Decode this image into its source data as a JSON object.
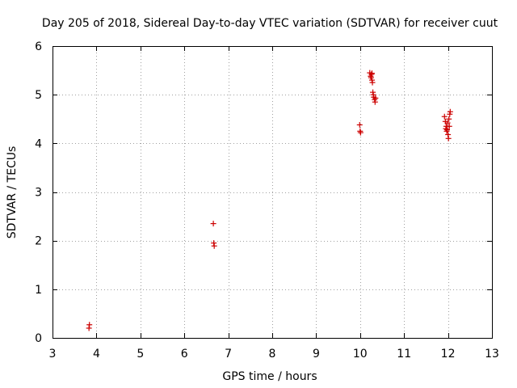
{
  "chart_data": {
    "type": "scatter",
    "title": "Day 205 of 2018, Sidereal Day-to-day VTEC variation (SDTVAR) for receiver cuut",
    "xlabel": "GPS time / hours",
    "ylabel": "SDTVAR / TECUs",
    "xlim": [
      3,
      13
    ],
    "ylim": [
      0,
      6
    ],
    "xticks": [
      3,
      4,
      5,
      6,
      7,
      8,
      9,
      10,
      11,
      12,
      13
    ],
    "yticks": [
      0,
      1,
      2,
      3,
      4,
      5,
      6
    ],
    "grid": true,
    "marker": "+",
    "marker_color": "#cc0000",
    "series": [
      {
        "name": "SDTVAR",
        "points": [
          [
            3.83,
            0.2
          ],
          [
            3.84,
            0.27
          ],
          [
            6.66,
            2.35
          ],
          [
            6.67,
            1.95
          ],
          [
            6.68,
            1.89
          ],
          [
            9.99,
            4.38
          ],
          [
            10.0,
            4.25
          ],
          [
            10.01,
            4.22
          ],
          [
            10.22,
            5.45
          ],
          [
            10.24,
            5.38
          ],
          [
            10.25,
            5.35
          ],
          [
            10.26,
            5.42
          ],
          [
            10.27,
            5.44
          ],
          [
            10.27,
            5.3
          ],
          [
            10.28,
            5.25
          ],
          [
            10.29,
            5.05
          ],
          [
            10.3,
            5.0
          ],
          [
            10.31,
            4.95
          ],
          [
            10.33,
            4.9
          ],
          [
            10.34,
            4.85
          ],
          [
            10.35,
            4.93
          ],
          [
            11.92,
            4.55
          ],
          [
            11.94,
            4.45
          ],
          [
            11.95,
            4.3
          ],
          [
            11.96,
            4.35
          ],
          [
            11.97,
            4.25
          ],
          [
            11.98,
            4.28
          ],
          [
            11.99,
            4.42
          ],
          [
            12.0,
            4.18
          ],
          [
            12.01,
            4.1
          ],
          [
            12.02,
            4.5
          ],
          [
            12.03,
            4.35
          ],
          [
            12.04,
            4.6
          ],
          [
            12.05,
            4.65
          ]
        ]
      }
    ]
  }
}
